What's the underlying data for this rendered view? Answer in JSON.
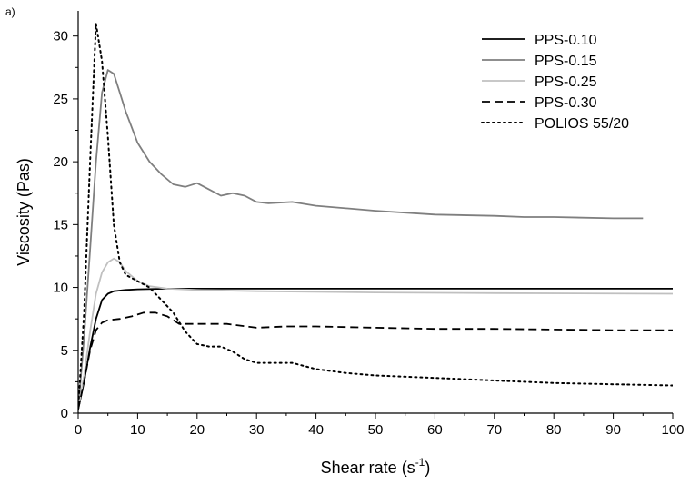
{
  "panel_label": "a)",
  "chart_data": {
    "type": "line",
    "title": "",
    "xlabel": "Shear rate (s",
    "xlabel_sup": "-1",
    "xlabel_close": ")",
    "ylabel": "Viscosity (Pas)",
    "xlim": [
      0,
      100
    ],
    "ylim": [
      0,
      32
    ],
    "xticks": [
      0,
      10,
      20,
      30,
      40,
      50,
      60,
      70,
      80,
      90,
      100
    ],
    "yticks": [
      0,
      5,
      10,
      15,
      20,
      25,
      30
    ],
    "grid": false,
    "legend_position": "top-right",
    "series": [
      {
        "name": "PPS-0.10",
        "color": "#000000",
        "style": "solid",
        "points": [
          [
            0,
            0.3
          ],
          [
            1,
            2.5
          ],
          [
            2,
            5.2
          ],
          [
            3,
            7.5
          ],
          [
            4,
            9.0
          ],
          [
            5,
            9.5
          ],
          [
            6,
            9.7
          ],
          [
            8,
            9.8
          ],
          [
            10,
            9.85
          ],
          [
            15,
            9.9
          ],
          [
            20,
            9.9
          ],
          [
            40,
            9.9
          ],
          [
            60,
            9.9
          ],
          [
            80,
            9.9
          ],
          [
            100,
            9.9
          ]
        ]
      },
      {
        "name": "PPS-0.15",
        "color": "#7f7f7f",
        "style": "solid",
        "points": [
          [
            0,
            0.3
          ],
          [
            1,
            6.0
          ],
          [
            2,
            13.0
          ],
          [
            3,
            20.0
          ],
          [
            4,
            25.5
          ],
          [
            5,
            27.3
          ],
          [
            6,
            27.0
          ],
          [
            7,
            25.5
          ],
          [
            8,
            24.0
          ],
          [
            10,
            21.5
          ],
          [
            12,
            20.0
          ],
          [
            14,
            19.0
          ],
          [
            16,
            18.2
          ],
          [
            18,
            18.0
          ],
          [
            20,
            18.3
          ],
          [
            22,
            17.8
          ],
          [
            24,
            17.3
          ],
          [
            26,
            17.5
          ],
          [
            28,
            17.3
          ],
          [
            30,
            16.8
          ],
          [
            32,
            16.7
          ],
          [
            36,
            16.8
          ],
          [
            40,
            16.5
          ],
          [
            50,
            16.1
          ],
          [
            60,
            15.8
          ],
          [
            70,
            15.7
          ],
          [
            75,
            15.6
          ],
          [
            80,
            15.6
          ],
          [
            90,
            15.5
          ],
          [
            95,
            15.5
          ]
        ]
      },
      {
        "name": "PPS-0.25",
        "color": "#c0c0c0",
        "style": "solid",
        "points": [
          [
            0,
            0.3
          ],
          [
            1,
            3.0
          ],
          [
            2,
            6.5
          ],
          [
            3,
            9.5
          ],
          [
            4,
            11.2
          ],
          [
            5,
            12.0
          ],
          [
            6,
            12.3
          ],
          [
            7,
            12.0
          ],
          [
            8,
            11.3
          ],
          [
            10,
            10.5
          ],
          [
            12,
            10.1
          ],
          [
            15,
            9.9
          ],
          [
            20,
            9.8
          ],
          [
            30,
            9.7
          ],
          [
            50,
            9.6
          ],
          [
            70,
            9.55
          ],
          [
            100,
            9.5
          ]
        ]
      },
      {
        "name": "PPS-0.30",
        "color": "#000000",
        "style": "dashed",
        "points": [
          [
            0,
            0.3
          ],
          [
            1,
            2.5
          ],
          [
            2,
            5.0
          ],
          [
            3,
            6.6
          ],
          [
            4,
            7.2
          ],
          [
            5,
            7.4
          ],
          [
            7,
            7.5
          ],
          [
            9,
            7.7
          ],
          [
            11,
            8.0
          ],
          [
            13,
            8.0
          ],
          [
            15,
            7.7
          ],
          [
            17,
            7.1
          ],
          [
            20,
            7.1
          ],
          [
            25,
            7.1
          ],
          [
            30,
            6.8
          ],
          [
            35,
            6.9
          ],
          [
            40,
            6.9
          ],
          [
            50,
            6.8
          ],
          [
            60,
            6.7
          ],
          [
            70,
            6.7
          ],
          [
            80,
            6.65
          ],
          [
            90,
            6.6
          ],
          [
            100,
            6.6
          ]
        ]
      },
      {
        "name": "POLIOS 55/20",
        "color": "#000000",
        "style": "dotted",
        "points": [
          [
            0,
            0.3
          ],
          [
            1,
            8.0
          ],
          [
            2,
            20.0
          ],
          [
            3,
            31.0
          ],
          [
            4,
            28.0
          ],
          [
            5,
            22.0
          ],
          [
            6,
            15.0
          ],
          [
            7,
            12.0
          ],
          [
            8,
            11.0
          ],
          [
            10,
            10.5
          ],
          [
            12,
            10.0
          ],
          [
            14,
            9.0
          ],
          [
            16,
            8.0
          ],
          [
            18,
            6.5
          ],
          [
            20,
            5.5
          ],
          [
            22,
            5.3
          ],
          [
            24,
            5.3
          ],
          [
            26,
            4.9
          ],
          [
            28,
            4.3
          ],
          [
            30,
            4.0
          ],
          [
            33,
            4.0
          ],
          [
            36,
            4.0
          ],
          [
            40,
            3.5
          ],
          [
            45,
            3.2
          ],
          [
            50,
            3.0
          ],
          [
            60,
            2.8
          ],
          [
            70,
            2.6
          ],
          [
            80,
            2.4
          ],
          [
            90,
            2.3
          ],
          [
            100,
            2.2
          ]
        ]
      }
    ]
  }
}
